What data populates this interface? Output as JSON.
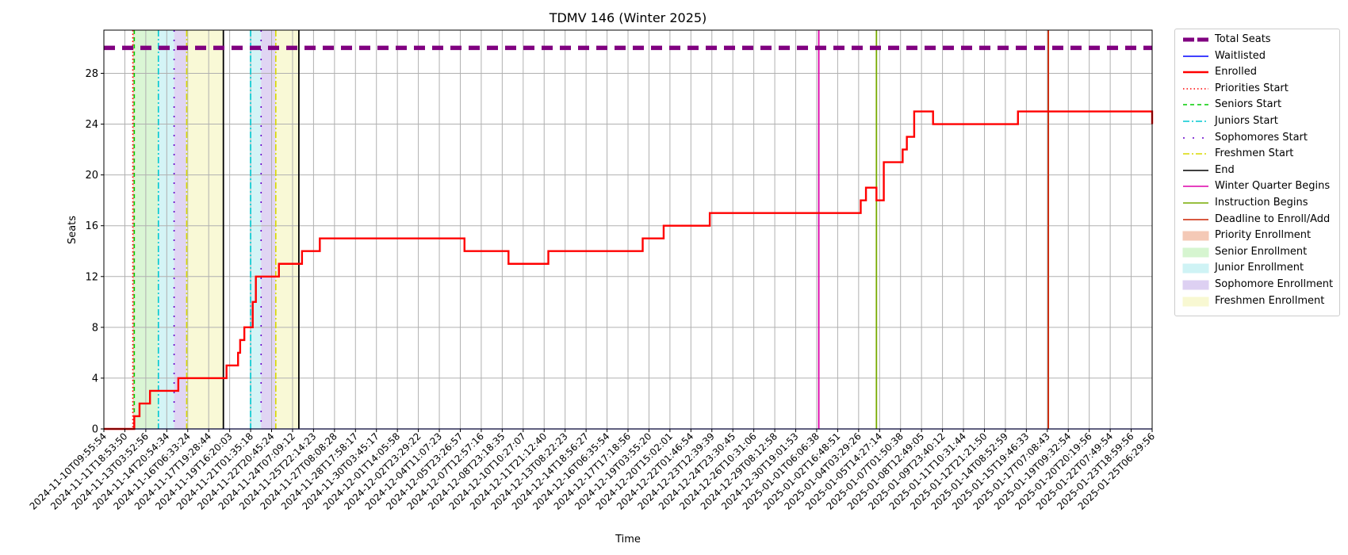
{
  "chart_data": {
    "type": "line",
    "title": "TDMV 146 (Winter 2025)",
    "xlabel": "Time",
    "ylabel": "Seats",
    "x_axis_kind": "time",
    "xlim": [
      "2024-11-10T09:55:54",
      "2025-01-25T06:29:56"
    ],
    "ylim": [
      0,
      31.4
    ],
    "yticks": [
      0,
      4,
      8,
      12,
      16,
      20,
      24,
      28
    ],
    "grid": true,
    "legend_position": "outside-right",
    "xtick_labels": [
      "2024-11-10T09:55:54",
      "2024-11-11T18:53:50",
      "2024-11-13T03:52:56",
      "2024-11-14T20:54:34",
      "2024-11-16T06:33:24",
      "2024-11-17T19:28:44",
      "2024-11-19T16:20:03",
      "2024-11-21T01:35:18",
      "2024-11-22T20:45:24",
      "2024-11-24T07:09:12",
      "2024-11-25T22:14:23",
      "2024-11-27T08:08:28",
      "2024-11-28T17:58:17",
      "2024-11-30T03:45:17",
      "2024-12-01T14:05:58",
      "2024-12-02T23:29:22",
      "2024-12-04T11:07:23",
      "2024-12-05T23:26:57",
      "2024-12-07T12:57:16",
      "2024-12-08T23:18:35",
      "2024-12-10T10:27:07",
      "2024-12-11T21:12:40",
      "2024-12-13T08:22:23",
      "2024-12-14T18:56:27",
      "2024-12-16T06:35:54",
      "2024-12-17T17:18:56",
      "2024-12-19T03:55:20",
      "2024-12-20T15:02:01",
      "2024-12-22T01:46:54",
      "2024-12-23T12:39:39",
      "2024-12-24T23:30:45",
      "2024-12-26T10:31:06",
      "2024-12-29T08:12:58",
      "2024-12-30T19:01:53",
      "2025-01-01T06:06:38",
      "2025-01-02T16:48:51",
      "2025-01-04T03:29:26",
      "2025-01-05T14:27:14",
      "2025-01-07T01:50:38",
      "2025-01-08T12:49:05",
      "2025-01-09T23:40:12",
      "2025-01-11T10:31:44",
      "2025-01-12T21:21:50",
      "2025-01-14T08:52:59",
      "2025-01-15T19:46:33",
      "2025-01-17T07:08:43",
      "2025-01-19T09:32:54",
      "2025-01-20T20:19:56",
      "2025-01-22T07:49:54",
      "2025-01-23T18:59:56",
      "2025-01-25T06:29:56"
    ],
    "total_seats": 30,
    "series": [
      {
        "name": "Total Seats",
        "color": "#800080",
        "style": "dashed-thick",
        "points": [
          [
            0,
            30
          ],
          [
            50,
            30
          ]
        ]
      },
      {
        "name": "Waitlisted",
        "color": "#0000ff",
        "style": "solid",
        "points": [
          [
            0,
            0
          ],
          [
            50,
            0
          ]
        ]
      },
      {
        "name": "Enrolled",
        "color": "#ff0000",
        "style": "step",
        "points": [
          [
            0,
            0
          ],
          [
            1.45,
            0
          ],
          [
            1.45,
            1
          ],
          [
            1.7,
            1
          ],
          [
            1.7,
            2
          ],
          [
            2.2,
            2
          ],
          [
            2.2,
            3
          ],
          [
            3.55,
            3
          ],
          [
            3.55,
            4
          ],
          [
            5.85,
            4
          ],
          [
            5.85,
            5
          ],
          [
            6.4,
            5
          ],
          [
            6.4,
            6
          ],
          [
            6.5,
            6
          ],
          [
            6.5,
            7
          ],
          [
            6.7,
            7
          ],
          [
            6.7,
            8
          ],
          [
            7.1,
            8
          ],
          [
            7.1,
            10
          ],
          [
            7.25,
            10
          ],
          [
            7.25,
            12
          ],
          [
            8.35,
            12
          ],
          [
            8.35,
            13
          ],
          [
            9.45,
            13
          ],
          [
            9.45,
            14
          ],
          [
            10.3,
            14
          ],
          [
            10.3,
            15
          ],
          [
            17.2,
            15
          ],
          [
            17.2,
            14
          ],
          [
            19.3,
            14
          ],
          [
            19.3,
            13
          ],
          [
            21.2,
            13
          ],
          [
            21.2,
            14
          ],
          [
            25.7,
            14
          ],
          [
            25.7,
            15
          ],
          [
            26.7,
            15
          ],
          [
            26.7,
            16
          ],
          [
            28.9,
            16
          ],
          [
            28.9,
            17
          ],
          [
            36.1,
            17
          ],
          [
            36.1,
            18
          ],
          [
            36.35,
            18
          ],
          [
            36.35,
            19
          ],
          [
            36.85,
            19
          ],
          [
            36.85,
            18
          ],
          [
            37.2,
            18
          ],
          [
            37.2,
            21
          ],
          [
            38.1,
            21
          ],
          [
            38.1,
            22
          ],
          [
            38.3,
            22
          ],
          [
            38.3,
            23
          ],
          [
            38.65,
            23
          ],
          [
            38.65,
            25
          ],
          [
            39.55,
            25
          ],
          [
            39.55,
            24
          ],
          [
            43.6,
            24
          ],
          [
            43.6,
            25
          ],
          [
            50,
            25
          ],
          [
            50,
            24
          ]
        ]
      }
    ],
    "vertical_markers": [
      {
        "name": "Priorities Start",
        "x": 1.38,
        "color": "#ff0000",
        "style": "dotted"
      },
      {
        "name": "Seniors Start",
        "x": 1.45,
        "color": "#00cc00",
        "style": "dashed"
      },
      {
        "name": "Juniors Start",
        "x": 2.6,
        "color": "#00c8d0",
        "style": "dashdot"
      },
      {
        "name": "Sophomores Start",
        "x": 3.35,
        "color": "#6600cc",
        "style": "dashdot-sparse"
      },
      {
        "name": "Freshmen Start",
        "x": 3.95,
        "color": "#d8d800",
        "style": "dashdot"
      },
      {
        "name": "End",
        "x": 5.7,
        "color": "#000000",
        "style": "solid"
      },
      {
        "name": "Juniors Start",
        "x": 7.0,
        "color": "#00c8d0",
        "style": "dashdot"
      },
      {
        "name": "Sophomores Start",
        "x": 7.5,
        "color": "#6600cc",
        "style": "dashdot-sparse"
      },
      {
        "name": "Freshmen Start",
        "x": 8.2,
        "color": "#d8d800",
        "style": "dashdot"
      },
      {
        "name": "End",
        "x": 9.3,
        "color": "#000000",
        "style": "solid"
      },
      {
        "name": "Winter Quarter Begins",
        "x": 34.1,
        "color": "#dd00aa",
        "style": "solid"
      },
      {
        "name": "Instruction Begins",
        "x": 36.85,
        "color": "#77aa00",
        "style": "solid"
      },
      {
        "name": "Deadline to Enroll/Add",
        "x": 45.05,
        "color": "#cc2200",
        "style": "solid"
      }
    ],
    "enrollment_periods": [
      {
        "name": "Priority Enrollment",
        "from": 1.38,
        "to": 1.45,
        "color": "#f4c9b6"
      },
      {
        "name": "Senior Enrollment",
        "from": 1.45,
        "to": 2.6,
        "color": "#d6f5d0"
      },
      {
        "name": "Junior Enrollment",
        "from": 2.6,
        "to": 3.35,
        "color": "#cff3f5"
      },
      {
        "name": "Sophomore Enrollment",
        "from": 3.35,
        "to": 3.95,
        "color": "#ddd0f2"
      },
      {
        "name": "Freshmen Enrollment",
        "from": 3.95,
        "to": 5.7,
        "color": "#f8f8d2"
      },
      {
        "name": "Junior Enrollment",
        "from": 6.95,
        "to": 7.5,
        "color": "#cff3f5"
      },
      {
        "name": "Sophomore Enrollment",
        "from": 7.5,
        "to": 8.2,
        "color": "#ddd0f2"
      },
      {
        "name": "Freshmen Enrollment",
        "from": 8.2,
        "to": 9.3,
        "color": "#f8f8d2"
      }
    ],
    "legend": [
      {
        "label": "Total Seats",
        "kind": "line",
        "color": "#800080",
        "style": "dashed-thick"
      },
      {
        "label": "Waitlisted",
        "kind": "line",
        "color": "#0000ff",
        "style": "solid"
      },
      {
        "label": "Enrolled",
        "kind": "line",
        "color": "#ff0000",
        "style": "solid-thick"
      },
      {
        "label": "Priorities Start",
        "kind": "line",
        "color": "#ff0000",
        "style": "dotted"
      },
      {
        "label": "Seniors Start",
        "kind": "line",
        "color": "#00cc00",
        "style": "dashed"
      },
      {
        "label": "Juniors Start",
        "kind": "line",
        "color": "#00c8d0",
        "style": "dashdot"
      },
      {
        "label": "Sophomores Start",
        "kind": "line",
        "color": "#6600cc",
        "style": "dashdot-sparse"
      },
      {
        "label": "Freshmen Start",
        "kind": "line",
        "color": "#d8d800",
        "style": "dashdot"
      },
      {
        "label": "End",
        "kind": "line",
        "color": "#000000",
        "style": "solid"
      },
      {
        "label": "Winter Quarter Begins",
        "kind": "line",
        "color": "#dd00aa",
        "style": "solid"
      },
      {
        "label": "Instruction Begins",
        "kind": "line",
        "color": "#77aa00",
        "style": "solid"
      },
      {
        "label": "Deadline to Enroll/Add",
        "kind": "line",
        "color": "#cc2200",
        "style": "solid"
      },
      {
        "label": "Priority Enrollment",
        "kind": "patch",
        "color": "#f4c9b6"
      },
      {
        "label": "Senior Enrollment",
        "kind": "patch",
        "color": "#d6f5d0"
      },
      {
        "label": "Junior Enrollment",
        "kind": "patch",
        "color": "#cff3f5"
      },
      {
        "label": "Sophomore Enrollment",
        "kind": "patch",
        "color": "#ddd0f2"
      },
      {
        "label": "Freshmen Enrollment",
        "kind": "patch",
        "color": "#f8f8d2"
      }
    ]
  }
}
